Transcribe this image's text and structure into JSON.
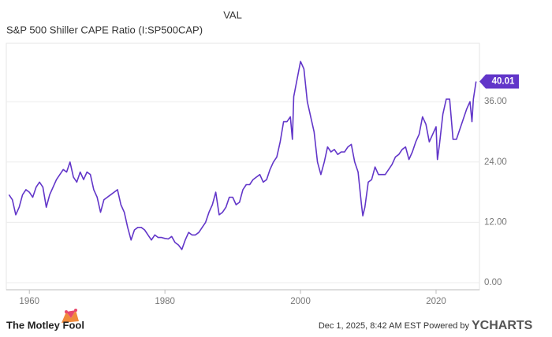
{
  "chart_data": {
    "type": "line",
    "title": "S&P 500 Shiller CAPE Ratio (I:SP500CAP)",
    "legend_header": "VAL",
    "footer_text": "Dec 1, 2025, 8:42 AM EST Powered by",
    "footer_brand": "YCHARTS",
    "logo_text": "The Motley Fool",
    "xlim": [
      1956.6,
      2026.4
    ],
    "xticks": [
      1960,
      1980,
      2000,
      2020
    ],
    "ylim": [
      -1.4,
      47.6
    ],
    "yticks": [
      {
        "value": 0,
        "label": "0.00"
      },
      {
        "value": 12,
        "label": "12.00"
      },
      {
        "value": 24,
        "label": "24.00"
      },
      {
        "value": 36,
        "label": "36.00"
      }
    ],
    "grid": true,
    "series": [
      {
        "name": "S&P 500 Shiller CAPE Ratio (I:SP500CAP)",
        "color": "#6236c9",
        "x": [
          1957.0,
          1957.5,
          1958.0,
          1958.5,
          1959.0,
          1959.5,
          1960.0,
          1960.5,
          1961.0,
          1961.5,
          1962.0,
          1962.5,
          1963.0,
          1963.5,
          1964.0,
          1964.5,
          1965.0,
          1965.5,
          1966.0,
          1966.5,
          1967.0,
          1967.5,
          1968.0,
          1968.5,
          1969.0,
          1969.5,
          1970.0,
          1970.5,
          1971.0,
          1971.5,
          1972.0,
          1972.5,
          1973.0,
          1973.5,
          1974.0,
          1974.5,
          1975.0,
          1975.5,
          1976.0,
          1976.5,
          1977.0,
          1977.5,
          1978.0,
          1978.5,
          1979.0,
          1979.5,
          1980.0,
          1980.5,
          1981.0,
          1981.5,
          1982.0,
          1982.5,
          1983.0,
          1983.5,
          1984.0,
          1984.5,
          1985.0,
          1985.5,
          1986.0,
          1986.5,
          1987.0,
          1987.5,
          1988.0,
          1988.5,
          1989.0,
          1989.5,
          1990.0,
          1990.5,
          1991.0,
          1991.5,
          1992.0,
          1992.5,
          1993.0,
          1993.5,
          1994.0,
          1994.5,
          1995.0,
          1995.5,
          1996.0,
          1996.5,
          1997.0,
          1997.5,
          1998.0,
          1998.5,
          1998.8,
          1999.0,
          1999.5,
          2000.0,
          2000.5,
          2001.0,
          2001.5,
          2002.0,
          2002.5,
          2003.0,
          2003.5,
          2004.0,
          2004.5,
          2005.0,
          2005.5,
          2006.0,
          2006.5,
          2007.0,
          2007.5,
          2008.0,
          2008.5,
          2009.0,
          2009.2,
          2009.5,
          2010.0,
          2010.5,
          2011.0,
          2011.5,
          2012.0,
          2012.5,
          2013.0,
          2013.5,
          2014.0,
          2014.5,
          2015.0,
          2015.5,
          2016.0,
          2016.5,
          2017.0,
          2017.5,
          2018.0,
          2018.5,
          2019.0,
          2019.5,
          2020.0,
          2020.2,
          2020.5,
          2021.0,
          2021.5,
          2022.0,
          2022.5,
          2023.0,
          2023.5,
          2024.0,
          2024.5,
          2025.0,
          2025.3,
          2025.5,
          2025.9
        ],
        "values": [
          17.5,
          16.5,
          13.5,
          15,
          17.5,
          18.5,
          18,
          17,
          19,
          20,
          19,
          15,
          17.5,
          19,
          20.5,
          21.5,
          22.5,
          22,
          24,
          21,
          20,
          22,
          20.5,
          22,
          21.5,
          18.5,
          17,
          14,
          16.5,
          17,
          17.5,
          18,
          18.5,
          15.5,
          14,
          11,
          8.5,
          10.5,
          11,
          11,
          10.5,
          9.5,
          8.5,
          9.5,
          9,
          9,
          8.8,
          8.7,
          9.2,
          8,
          7.5,
          6.6,
          8.5,
          10,
          9.5,
          9.5,
          10,
          11,
          12,
          14,
          15.5,
          18,
          13.5,
          14,
          15,
          17,
          17,
          15.5,
          16,
          18.5,
          19.5,
          19.5,
          20.5,
          21,
          21.5,
          20,
          20.5,
          22.5,
          24,
          25,
          28,
          32,
          32,
          33,
          28.5,
          37,
          40.5,
          44,
          42.5,
          36,
          33,
          30,
          24,
          21.5,
          24,
          27,
          26,
          26.5,
          25.5,
          26,
          26,
          27,
          27.5,
          24,
          22,
          15.5,
          13.3,
          15,
          20,
          20.5,
          23,
          21.5,
          21.5,
          21.5,
          22.5,
          23.5,
          25,
          25.5,
          26.5,
          27,
          24.5,
          26,
          28,
          29.5,
          33,
          31.5,
          28,
          29.5,
          31,
          24.5,
          27.5,
          33.5,
          36.5,
          36.5,
          28.5,
          28.5,
          30.5,
          32.5,
          34.5,
          36,
          32,
          36.5,
          40.01
        ]
      }
    ]
  }
}
